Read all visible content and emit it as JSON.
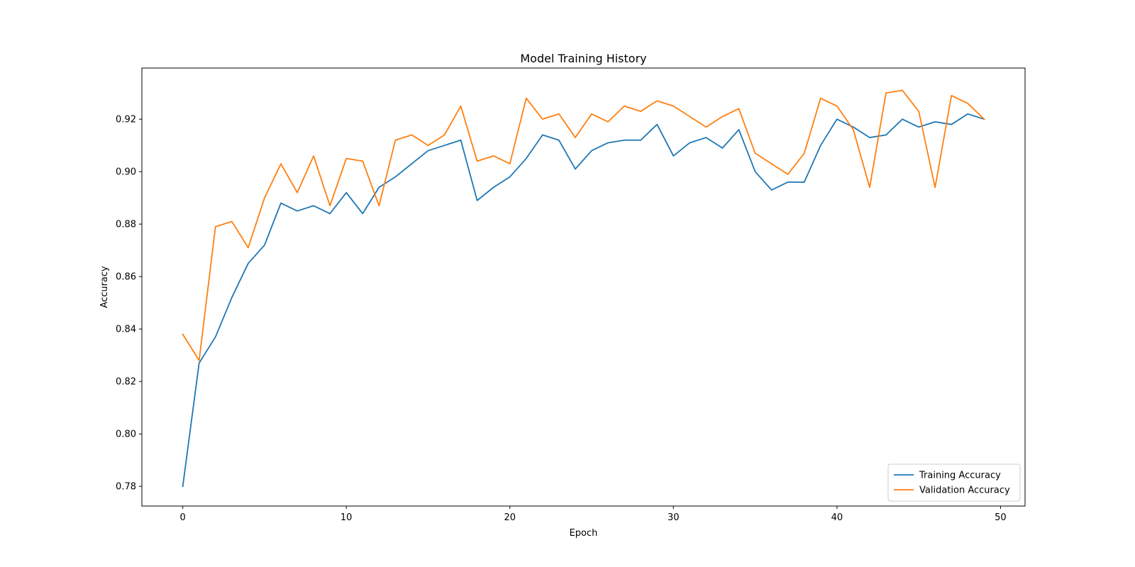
{
  "chart_data": {
    "type": "line",
    "title": "Model Training History",
    "xlabel": "Epoch",
    "ylabel": "Accuracy",
    "xlim": [
      -2.5,
      51.5
    ],
    "ylim": [
      0.7725,
      0.9395
    ],
    "x_ticks": [
      0,
      10,
      20,
      30,
      40,
      50
    ],
    "y_ticks": [
      0.78,
      0.8,
      0.82,
      0.84,
      0.86,
      0.88,
      0.9,
      0.92
    ],
    "x_tick_labels": [
      "0",
      "10",
      "20",
      "30",
      "40",
      "50"
    ],
    "y_tick_labels": [
      "0.78",
      "0.80",
      "0.82",
      "0.84",
      "0.86",
      "0.88",
      "0.90",
      "0.92"
    ],
    "grid": false,
    "legend_position": "lower-right",
    "x": [
      0,
      1,
      2,
      3,
      4,
      5,
      6,
      7,
      8,
      9,
      10,
      11,
      12,
      13,
      14,
      15,
      16,
      17,
      18,
      19,
      20,
      21,
      22,
      23,
      24,
      25,
      26,
      27,
      28,
      29,
      30,
      31,
      32,
      33,
      34,
      35,
      36,
      37,
      38,
      39,
      40,
      41,
      42,
      43,
      44,
      45,
      46,
      47,
      48,
      49
    ],
    "series": [
      {
        "name": "Training Accuracy",
        "color": "#1f77b4",
        "values": [
          0.78,
          0.827,
          0.837,
          0.852,
          0.865,
          0.872,
          0.888,
          0.885,
          0.887,
          0.884,
          0.892,
          0.884,
          0.894,
          0.898,
          0.903,
          0.908,
          0.91,
          0.912,
          0.889,
          0.894,
          0.898,
          0.905,
          0.914,
          0.912,
          0.901,
          0.908,
          0.911,
          0.912,
          0.912,
          0.918,
          0.906,
          0.911,
          0.913,
          0.909,
          0.916,
          0.9,
          0.893,
          0.896,
          0.896,
          0.91,
          0.92,
          0.917,
          0.913,
          0.914,
          0.92,
          0.917,
          0.919,
          0.918,
          0.922,
          0.92
        ]
      },
      {
        "name": "Validation Accuracy",
        "color": "#ff7f0e",
        "values": [
          0.838,
          0.828,
          0.879,
          0.881,
          0.871,
          0.89,
          0.903,
          0.892,
          0.906,
          0.887,
          0.905,
          0.904,
          0.887,
          0.912,
          0.914,
          0.91,
          0.914,
          0.925,
          0.904,
          0.906,
          0.903,
          0.928,
          0.92,
          0.922,
          0.913,
          0.922,
          0.919,
          0.925,
          0.923,
          0.927,
          0.925,
          0.921,
          0.917,
          0.921,
          0.924,
          0.907,
          0.903,
          0.899,
          0.907,
          0.928,
          0.925,
          0.916,
          0.894,
          0.93,
          0.931,
          0.923,
          0.894,
          0.929,
          0.926,
          0.92
        ]
      }
    ]
  }
}
